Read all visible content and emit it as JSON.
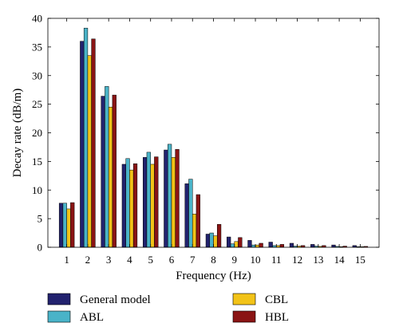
{
  "chart_data": {
    "type": "bar",
    "title": "",
    "xlabel": "Frequency (Hz)",
    "ylabel": "Decay rate (dB/m)",
    "ylim": [
      0,
      40
    ],
    "yticks": [
      "0",
      "5",
      "10",
      "15",
      "20",
      "25",
      "30",
      "35",
      "40"
    ],
    "categories": [
      "1",
      "2",
      "3",
      "4",
      "5",
      "6",
      "7",
      "8",
      "9",
      "10",
      "11",
      "12",
      "13",
      "14",
      "15"
    ],
    "grid": false,
    "legend_position": "bottom",
    "series": [
      {
        "name": "General model",
        "color": "#22226e",
        "values": [
          7.7,
          36.0,
          26.4,
          14.5,
          15.7,
          17.0,
          11.1,
          2.3,
          1.8,
          1.2,
          0.9,
          0.7,
          0.5,
          0.4,
          0.3
        ]
      },
      {
        "name": "ABL",
        "color": "#4ab3c8",
        "values": [
          7.7,
          38.3,
          28.1,
          15.5,
          16.6,
          18.0,
          11.9,
          2.5,
          0.6,
          0.4,
          0.3,
          0.2,
          0.2,
          0.15,
          0.1
        ]
      },
      {
        "name": "CBL",
        "color": "#f2c318",
        "values": [
          6.7,
          33.5,
          24.5,
          13.5,
          14.5,
          15.7,
          5.8,
          2.0,
          1.0,
          0.4,
          0.3,
          0.2,
          0.15,
          0.1,
          0.1
        ]
      },
      {
        "name": "HBL",
        "color": "#8a1414",
        "values": [
          7.8,
          36.4,
          26.6,
          14.6,
          15.8,
          17.1,
          9.2,
          4.0,
          1.7,
          0.7,
          0.5,
          0.3,
          0.3,
          0.2,
          0.15
        ]
      }
    ]
  }
}
